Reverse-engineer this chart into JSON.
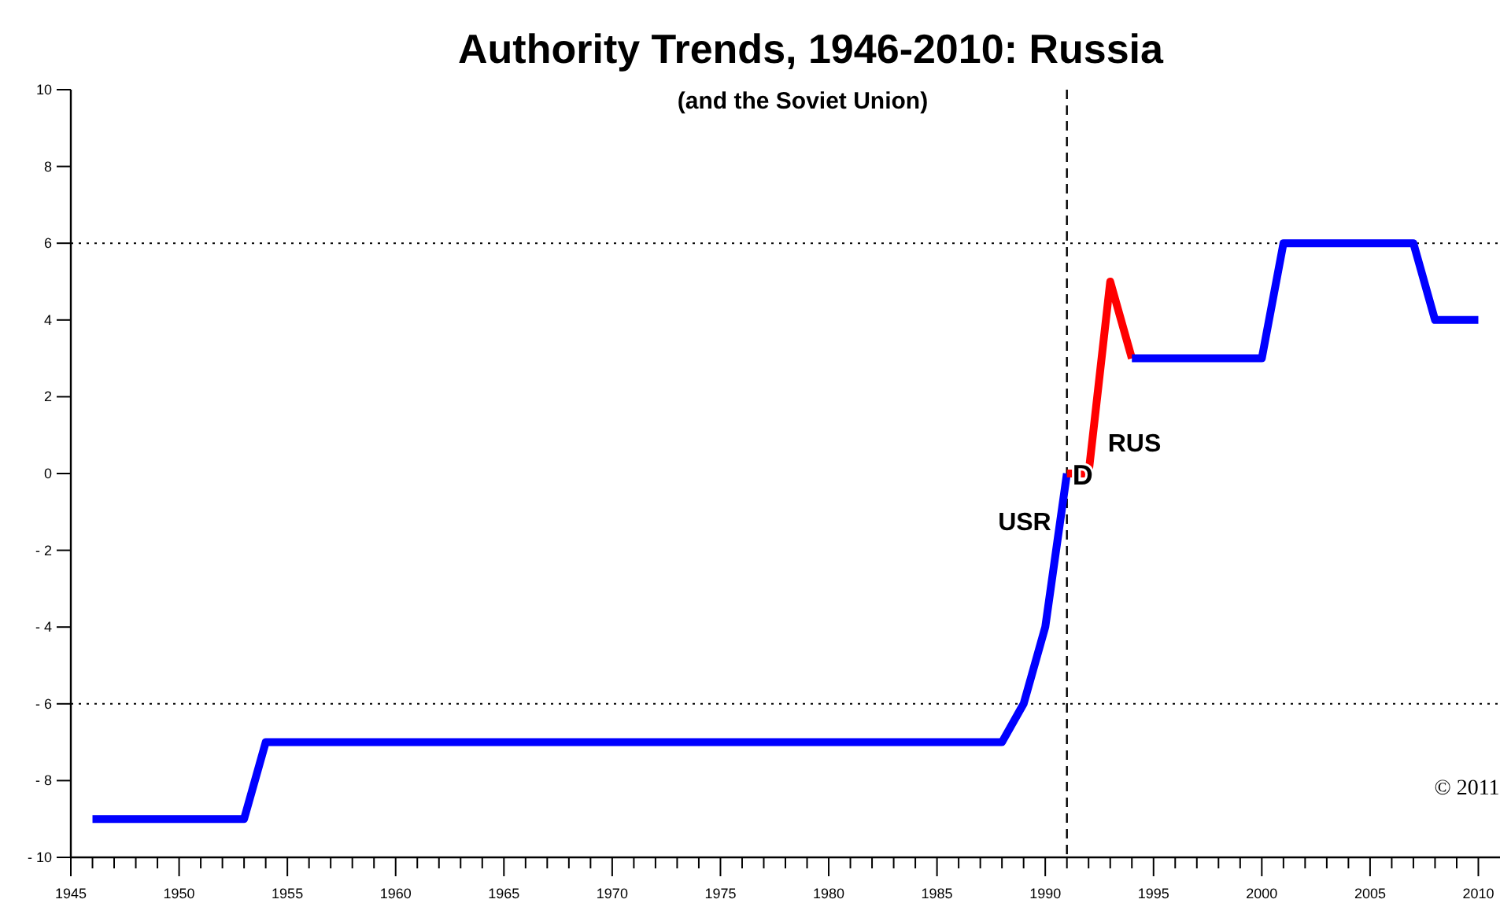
{
  "chart_data": {
    "type": "line",
    "title": "Authority Trends, 1946-2010: Russia",
    "subtitle": "(and the Soviet Union)",
    "series": [
      {
        "color": "#0000ff",
        "x": [
          1946,
          1953,
          1954,
          1988,
          1989,
          1990,
          1991
        ],
        "values": [
          -9,
          -9,
          -7,
          -7,
          -6,
          -4,
          0
        ]
      },
      {
        "color": "#ff0000",
        "x": [
          1991,
          1992,
          1993,
          1994
        ],
        "values": [
          0,
          0,
          5,
          3
        ]
      },
      {
        "color": "#0000ff",
        "x": [
          1994,
          2000,
          2001,
          2007,
          2008,
          2010
        ],
        "values": [
          3,
          3,
          6,
          6,
          4,
          4
        ]
      }
    ],
    "xlim": [
      1945,
      2011
    ],
    "xticks": [
      1945,
      {
        "value": 1946,
        "label": null
      },
      {
        "value": 1947,
        "label": null
      },
      {
        "value": 1948,
        "label": null
      },
      {
        "value": 1949,
        "label": null
      },
      1950,
      {
        "value": 1951,
        "label": null
      },
      {
        "value": 1952,
        "label": null
      },
      {
        "value": 1953,
        "label": null
      },
      {
        "value": 1954,
        "label": null
      },
      1955,
      {
        "value": 1956,
        "label": null
      },
      {
        "value": 1957,
        "label": null
      },
      {
        "value": 1958,
        "label": null
      },
      {
        "value": 1959,
        "label": null
      },
      1960,
      {
        "value": 1961,
        "label": null
      },
      {
        "value": 1962,
        "label": null
      },
      {
        "value": 1963,
        "label": null
      },
      {
        "value": 1964,
        "label": null
      },
      1965,
      {
        "value": 1966,
        "label": null
      },
      {
        "value": 1967,
        "label": null
      },
      {
        "value": 1968,
        "label": null
      },
      {
        "value": 1969,
        "label": null
      },
      1970,
      {
        "value": 1971,
        "label": null
      },
      {
        "value": 1972,
        "label": null
      },
      {
        "value": 1973,
        "label": null
      },
      {
        "value": 1974,
        "label": null
      },
      1975,
      {
        "value": 1976,
        "label": null
      },
      {
        "value": 1977,
        "label": null
      },
      {
        "value": 1978,
        "label": null
      },
      {
        "value": 1979,
        "label": null
      },
      1980,
      {
        "value": 1981,
        "label": null
      },
      {
        "value": 1982,
        "label": null
      },
      {
        "value": 1983,
        "label": null
      },
      {
        "value": 1984,
        "label": null
      },
      1985,
      {
        "value": 1986,
        "label": null
      },
      {
        "value": 1987,
        "label": null
      },
      {
        "value": 1988,
        "label": null
      },
      {
        "value": 1989,
        "label": null
      },
      1990,
      {
        "value": 1991,
        "label": null
      },
      {
        "value": 1992,
        "label": null
      },
      {
        "value": 1993,
        "label": null
      },
      {
        "value": 1994,
        "label": null
      },
      1995,
      {
        "value": 1996,
        "label": null
      },
      {
        "value": 1997,
        "label": null
      },
      {
        "value": 1998,
        "label": null
      },
      {
        "value": 1999,
        "label": null
      },
      2000,
      {
        "value": 2001,
        "label": null
      },
      {
        "value": 2002,
        "label": null
      },
      {
        "value": 2003,
        "label": null
      },
      {
        "value": 2004,
        "label": null
      },
      2005,
      {
        "value": 2006,
        "label": null
      },
      {
        "value": 2007,
        "label": null
      },
      {
        "value": 2008,
        "label": null
      },
      {
        "value": 2009,
        "label": null
      },
      2010
    ],
    "ylim": [
      -10,
      10
    ],
    "yticks": [
      -10,
      -8,
      -6,
      -4,
      -2,
      0,
      2,
      4,
      6,
      8,
      10
    ],
    "ref_lines": [
      {
        "axis": "y",
        "value": 6,
        "line_style": "dotted",
        "color": "#000000"
      },
      {
        "axis": "y",
        "value": -6,
        "line_style": "dotted",
        "color": "#000000"
      },
      {
        "axis": "x",
        "value": 1991,
        "line_style": "dashed",
        "color": "#000000"
      }
    ],
    "annotations": [
      "USR",
      "D",
      "RUS",
      "© 2011"
    ],
    "grid": false,
    "marker": "none",
    "line_style": "solid"
  }
}
